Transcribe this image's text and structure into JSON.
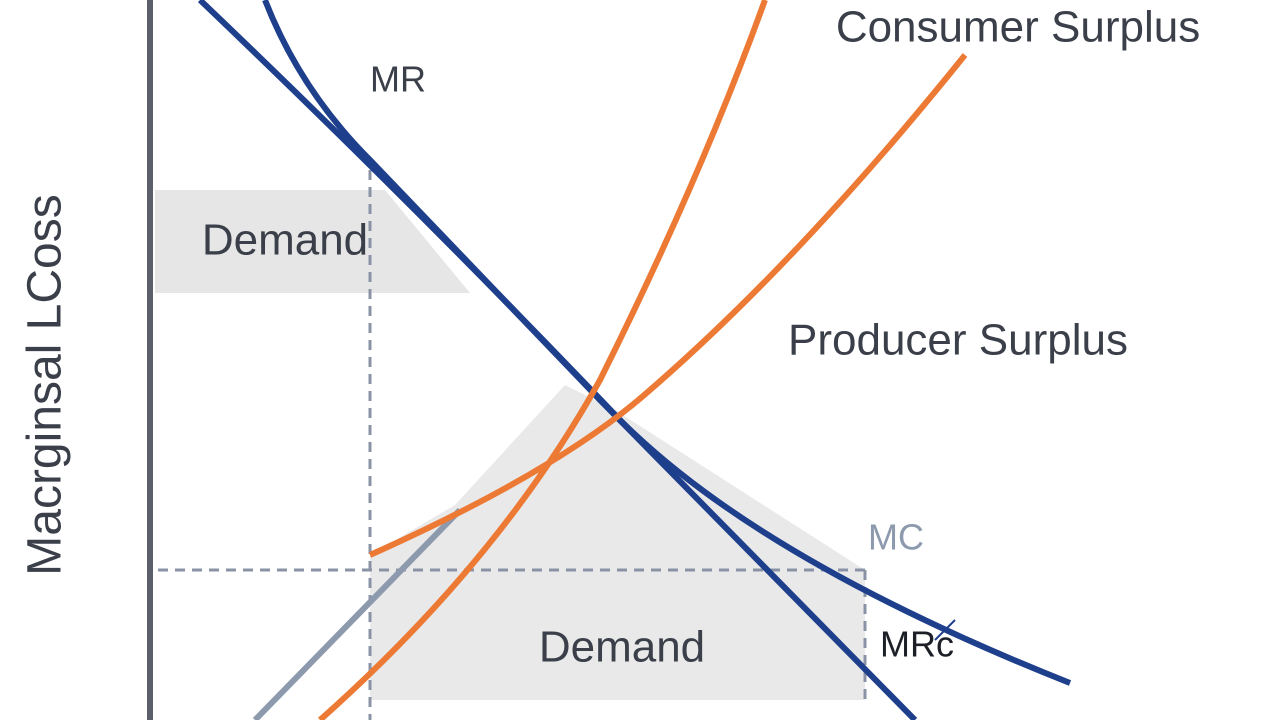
{
  "axis_label": "Macrginsal LCoss",
  "labels": {
    "mr": "MR",
    "consumer_surplus": "Consumer Surplus",
    "demand_upper": "Demand",
    "producer_surplus": "Producer Surplus",
    "mc": "MC",
    "demand_lower": "Demand",
    "mrc": "MRc"
  }
}
